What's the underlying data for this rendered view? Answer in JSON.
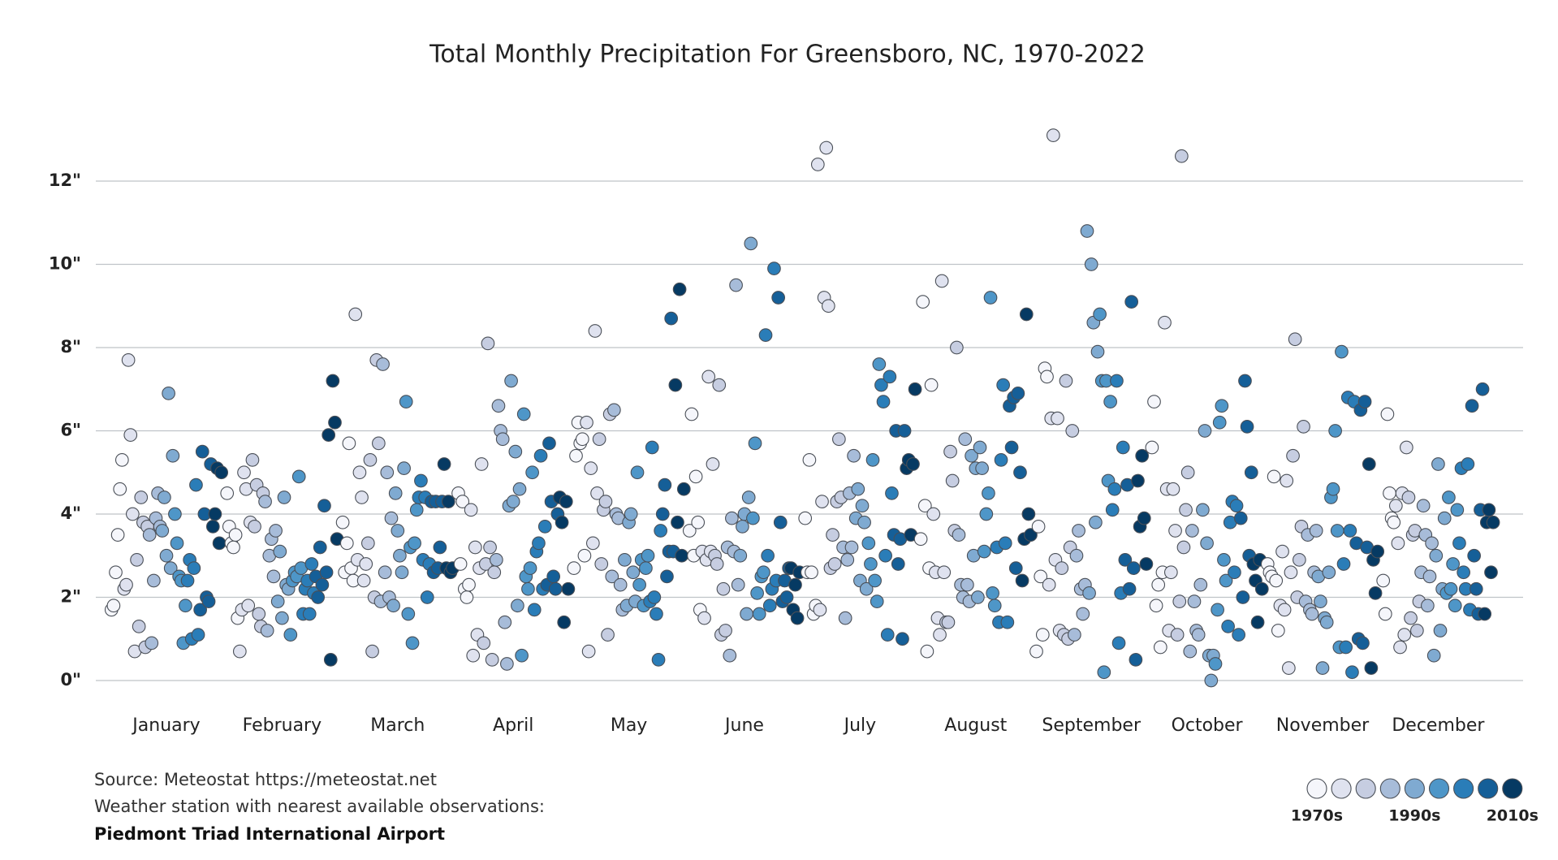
{
  "chart_data": {
    "type": "scatter",
    "title": "Total Monthly Precipitation For Greensboro, NC, 1970-2022",
    "categories": [
      "January",
      "February",
      "March",
      "April",
      "May",
      "June",
      "July",
      "August",
      "September",
      "October",
      "November",
      "December"
    ],
    "values": [
      [
        1.7,
        1.8,
        2.6,
        3.5,
        4.6,
        5.3,
        2.2,
        2.3,
        7.7,
        5.9,
        4.0,
        0.7,
        2.9,
        1.3,
        4.4,
        3.8,
        0.8,
        3.7,
        3.5,
        0.9,
        2.4,
        3.9,
        4.5,
        3.7,
        3.6,
        4.4,
        3.0,
        6.9,
        2.7,
        5.4,
        4.0,
        3.3,
        2.5,
        2.4,
        0.9,
        1.8,
        2.4,
        2.9,
        1.0,
        2.7,
        4.7,
        1.1,
        1.7,
        5.5,
        4.0,
        2.0,
        1.9,
        5.2,
        3.7,
        4.0,
        5.1,
        3.3,
        5.0
      ],
      [
        4.5,
        3.7,
        3.3,
        3.2,
        3.5,
        1.5,
        0.7,
        1.7,
        5.0,
        4.6,
        1.8,
        3.8,
        5.3,
        3.7,
        4.7,
        1.6,
        1.3,
        4.5,
        4.3,
        1.2,
        3.0,
        3.4,
        2.5,
        3.6,
        1.9,
        3.1,
        1.5,
        4.4,
        2.3,
        2.2,
        1.1,
        2.4,
        2.6,
        2.5,
        4.9,
        2.7,
        1.6,
        2.2,
        2.4,
        1.6,
        2.8,
        2.1,
        2.5,
        2.0,
        3.2,
        2.3,
        4.2,
        2.6,
        5.9,
        0.5,
        7.2,
        6.2,
        3.4
      ],
      [
        3.8,
        2.6,
        3.3,
        5.7,
        2.7,
        2.4,
        8.8,
        2.9,
        5.0,
        4.4,
        2.4,
        2.8,
        3.3,
        5.3,
        0.7,
        2.0,
        7.7,
        5.7,
        1.9,
        7.6,
        2.6,
        5.0,
        2.0,
        3.9,
        1.8,
        4.5,
        3.6,
        3.0,
        2.6,
        5.1,
        6.7,
        1.6,
        3.2,
        0.9,
        3.3,
        4.1,
        4.4,
        4.8,
        2.9,
        4.4,
        2.0,
        2.8,
        4.3,
        2.6,
        4.3,
        2.7,
        3.2,
        4.3,
        5.2,
        2.7,
        4.3,
        2.6,
        2.7
      ],
      [
        4.5,
        2.8,
        4.3,
        2.2,
        2.0,
        2.3,
        4.1,
        0.6,
        3.2,
        1.1,
        2.7,
        5.2,
        0.9,
        2.8,
        8.1,
        3.2,
        0.5,
        2.6,
        2.9,
        6.6,
        6.0,
        5.8,
        1.4,
        0.4,
        4.2,
        7.2,
        4.3,
        5.5,
        1.8,
        4.6,
        0.6,
        6.4,
        2.5,
        2.2,
        2.7,
        5.0,
        1.7,
        3.1,
        3.3,
        5.4,
        2.2,
        3.7,
        2.3,
        5.7,
        4.3,
        2.5,
        2.2,
        4.0,
        4.4,
        3.8,
        1.4,
        4.3,
        2.2
      ],
      [
        2.7,
        5.4,
        6.2,
        5.7,
        5.8,
        3.0,
        6.2,
        0.7,
        5.1,
        3.3,
        8.4,
        4.5,
        5.8,
        2.8,
        4.1,
        4.3,
        1.1,
        6.4,
        2.5,
        6.5,
        4.0,
        3.9,
        2.3,
        1.7,
        2.9,
        1.8,
        3.8,
        4.0,
        2.6,
        1.9,
        5.0,
        2.3,
        2.9,
        1.8,
        2.7,
        3.0,
        1.9,
        5.6,
        2.0,
        1.6,
        0.5,
        3.6,
        4.0,
        4.7,
        2.5,
        3.1,
        8.7,
        3.1,
        7.1,
        3.8,
        9.4,
        3.0,
        4.6
      ],
      [
        3.6,
        6.4,
        3.0,
        4.9,
        3.8,
        1.7,
        3.1,
        1.5,
        2.9,
        7.3,
        3.1,
        5.2,
        3.0,
        2.8,
        7.1,
        1.1,
        2.2,
        1.2,
        3.2,
        0.6,
        3.9,
        3.1,
        9.5,
        2.3,
        3.0,
        3.7,
        4.0,
        1.6,
        4.4,
        10.5,
        3.9,
        5.7,
        2.1,
        1.6,
        2.5,
        2.6,
        8.3,
        3.0,
        1.8,
        2.2,
        9.9,
        2.4,
        9.2,
        3.8,
        1.9,
        2.4,
        2.0,
        2.7,
        2.7,
        1.7,
        2.3,
        1.5,
        2.6
      ],
      [
        3.9,
        2.6,
        5.3,
        2.6,
        1.6,
        1.8,
        12.4,
        1.7,
        4.3,
        9.2,
        12.8,
        9.0,
        2.7,
        3.5,
        2.8,
        4.3,
        5.8,
        4.4,
        3.2,
        1.5,
        2.9,
        4.5,
        3.2,
        5.4,
        3.9,
        4.6,
        2.4,
        4.2,
        3.8,
        2.2,
        3.3,
        2.8,
        5.3,
        2.4,
        1.9,
        7.6,
        7.1,
        6.7,
        3.0,
        1.1,
        7.3,
        4.5,
        3.5,
        6.0,
        2.8,
        3.4,
        1.0,
        6.0,
        5.1,
        5.3,
        3.5,
        5.2,
        7.0
      ],
      [
        3.4,
        9.1,
        4.2,
        0.7,
        2.7,
        7.1,
        4.0,
        2.6,
        1.5,
        1.1,
        9.6,
        2.6,
        1.4,
        1.4,
        5.5,
        4.8,
        3.6,
        8.0,
        3.5,
        2.3,
        2.0,
        5.8,
        2.3,
        1.9,
        5.4,
        3.0,
        5.1,
        2.0,
        5.6,
        5.1,
        3.1,
        4.0,
        4.5,
        9.2,
        2.1,
        1.8,
        3.2,
        1.4,
        5.3,
        7.1,
        3.3,
        1.4,
        6.6,
        5.6,
        6.8,
        2.7,
        6.9,
        5.0,
        2.4,
        3.4,
        8.8,
        4.0,
        3.5
      ],
      [
        0.7,
        3.7,
        2.5,
        1.1,
        7.5,
        7.3,
        2.3,
        6.3,
        13.1,
        2.9,
        6.3,
        1.2,
        2.7,
        1.1,
        7.2,
        1.0,
        3.2,
        6.0,
        1.1,
        3.0,
        3.6,
        2.2,
        1.6,
        2.3,
        10.8,
        2.1,
        10.0,
        8.6,
        3.8,
        7.9,
        8.8,
        7.2,
        0.2,
        7.2,
        4.8,
        6.7,
        4.1,
        4.6,
        7.2,
        0.9,
        2.1,
        5.6,
        2.9,
        4.7,
        2.2,
        9.1,
        2.7,
        0.5,
        4.8,
        3.7,
        5.4,
        3.9,
        2.8
      ],
      [
        5.6,
        6.7,
        1.8,
        2.3,
        0.8,
        2.6,
        8.6,
        4.6,
        1.2,
        2.6,
        4.6,
        3.6,
        1.1,
        1.9,
        12.6,
        3.2,
        4.1,
        5.0,
        0.7,
        3.6,
        1.9,
        1.2,
        1.1,
        2.3,
        4.1,
        6.0,
        3.3,
        0.6,
        0.0,
        0.6,
        0.4,
        1.7,
        6.2,
        6.6,
        2.9,
        2.4,
        1.3,
        3.8,
        4.3,
        2.6,
        4.2,
        1.1,
        3.9,
        2.0,
        7.2,
        6.1,
        3.0,
        5.0,
        2.8,
        2.4,
        1.4,
        2.9,
        2.2
      ],
      [
        2.8,
        2.6,
        2.5,
        4.9,
        2.4,
        1.2,
        1.8,
        3.1,
        1.7,
        4.8,
        0.3,
        2.6,
        5.4,
        8.2,
        2.0,
        2.9,
        3.7,
        6.1,
        1.9,
        3.5,
        1.7,
        1.6,
        2.6,
        3.6,
        2.5,
        1.9,
        0.3,
        1.5,
        1.4,
        2.6,
        4.4,
        4.6,
        6.0,
        3.6,
        0.8,
        7.9,
        2.8,
        0.8,
        6.8,
        3.6,
        0.2,
        6.7,
        3.3,
        1.0,
        6.5,
        0.9,
        6.7,
        3.2,
        5.2,
        0.3,
        2.9,
        2.1,
        3.1
      ],
      [
        2.4,
        1.6,
        6.4,
        4.5,
        3.9,
        3.8,
        4.2,
        3.3,
        0.8,
        4.5,
        1.1,
        5.6,
        4.4,
        1.5,
        3.5,
        3.6,
        1.2,
        1.9,
        2.6,
        4.2,
        3.5,
        1.8,
        2.5,
        3.3,
        0.6,
        3.0,
        5.2,
        1.2,
        2.2,
        3.9,
        2.1,
        4.4,
        2.2,
        2.8,
        1.8,
        4.1,
        3.3,
        5.1,
        2.6,
        2.2,
        5.2,
        1.7,
        6.6,
        3.0,
        2.2,
        1.6,
        4.1,
        7.0,
        1.6,
        3.8,
        4.1,
        2.6,
        3.8
      ]
    ],
    "colors": [
      "#f5f6fb",
      "#dfe2ef",
      "#c6cde1",
      "#a7bcd9",
      "#7faad1",
      "#4e96c8",
      "#2a7db8",
      "#155f98",
      "#063a63"
    ],
    "legend_labels": [
      "1970s",
      "1990s",
      "2010s"
    ],
    "ylim": [
      -0.6,
      14.5
    ],
    "yticks": [
      {
        "value": 0,
        "label": "0\""
      },
      {
        "value": 2,
        "label": "2\""
      },
      {
        "value": 4,
        "label": "4\""
      },
      {
        "value": 6,
        "label": "6\""
      },
      {
        "value": 8,
        "label": "8\""
      },
      {
        "value": 10,
        "label": "10\""
      },
      {
        "value": 12,
        "label": "12\""
      }
    ],
    "grid": true,
    "notes": [
      "Source: Meteostat https://meteostat.net",
      "Weather station with nearest available observations:",
      "Piedmont Triad International Airport"
    ]
  }
}
